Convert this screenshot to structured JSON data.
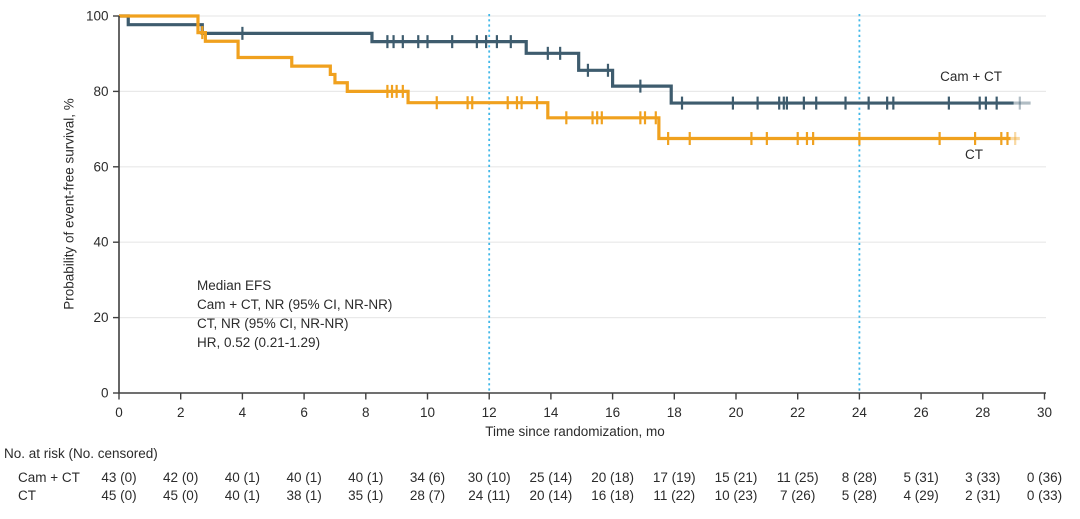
{
  "figure": {
    "legend": {
      "series1": "Cam + CT",
      "series2": "CT"
    },
    "annotation": {
      "line1": "Median EFS",
      "line2": "Cam + CT, NR (95% CI, NR-NR)",
      "line3": "CT, NR (95% CI, NR-NR)",
      "line4": "HR, 0.52 (0.21-1.29)"
    }
  },
  "chart_data": {
    "type": "line",
    "subtype": "kaplan-meier-step",
    "title": "",
    "xlabel": "Time since randomization, mo",
    "ylabel": "Probability of event-free survival, %",
    "xlim": [
      0,
      30
    ],
    "ylim": [
      0,
      100
    ],
    "xticks": [
      0,
      2,
      4,
      6,
      8,
      10,
      12,
      14,
      16,
      18,
      20,
      22,
      24,
      26,
      28,
      30
    ],
    "yticks": [
      0,
      20,
      40,
      60,
      80,
      100
    ],
    "grid": "horizontal-light",
    "reference_lines_x": [
      12,
      24
    ],
    "colors": {
      "series1": "#3e5c6e",
      "series2": "#f0a11e",
      "reference_line": "#42b8e8",
      "gridline": "#e9e9e9",
      "axis": "#404040",
      "text": "#2b2b2b"
    },
    "series": [
      {
        "name": "Cam + CT",
        "color": "#3e5c6e",
        "steps": [
          [
            0,
            100
          ],
          [
            0.3,
            97.7
          ],
          [
            2.7,
            95.4
          ],
          [
            8.2,
            93.2
          ],
          [
            13.2,
            90.1
          ],
          [
            14.9,
            85.6
          ],
          [
            16.0,
            81.4
          ],
          [
            17.9,
            76.9
          ],
          [
            29.0,
            76.9
          ]
        ],
        "censor_times": [
          4.0,
          8.7,
          8.9,
          9.2,
          9.7,
          10.0,
          10.8,
          11.6,
          11.9,
          12.25,
          12.7,
          13.9,
          14.3,
          15.2,
          15.85,
          16.9,
          18.25,
          19.9,
          20.7,
          21.4,
          21.55,
          21.65,
          22.2,
          22.6,
          23.55,
          24.3,
          24.9,
          25.1,
          26.9,
          27.9,
          28.1,
          28.45
        ],
        "light_censors": [],
        "fade_tail": [
          29.0,
          29.55
        ],
        "fade_censor": 29.2
      },
      {
        "name": "CT",
        "color": "#f0a11e",
        "steps": [
          [
            0,
            100
          ],
          [
            2.56,
            95.6
          ],
          [
            2.8,
            93.3
          ],
          [
            3.86,
            89.0
          ],
          [
            5.6,
            86.7
          ],
          [
            6.85,
            84.5
          ],
          [
            7.0,
            82.3
          ],
          [
            7.4,
            80.0
          ],
          [
            9.37,
            77.0
          ],
          [
            13.9,
            73.0
          ],
          [
            17.5,
            67.5
          ],
          [
            28.9,
            67.5
          ]
        ],
        "censor_times": [
          2.7,
          8.7,
          8.85,
          9.0,
          9.2,
          10.3,
          11.3,
          11.45,
          12.6,
          12.9,
          13.05,
          13.55,
          14.5,
          15.35,
          15.5,
          15.65,
          16.9,
          17.05,
          17.4,
          17.8,
          18.5,
          20.5,
          21.0,
          22.0,
          22.3,
          22.5,
          24.0,
          26.6,
          27.75,
          28.6,
          28.8
        ],
        "light_censors": [
          12.0
        ],
        "fade_tail": [
          28.9,
          29.2
        ],
        "fade_censor": 29.05
      }
    ],
    "risk_table": {
      "header": "No. at risk (No. censored)",
      "times": [
        0,
        2,
        4,
        6,
        8,
        10,
        12,
        14,
        16,
        18,
        20,
        22,
        24,
        26,
        28,
        30
      ],
      "rows": [
        {
          "name": "Cam + CT",
          "values": [
            "43 (0)",
            "42 (0)",
            "40 (1)",
            "40 (1)",
            "40 (1)",
            "34 (6)",
            "30 (10)",
            "25 (14)",
            "20 (18)",
            "17 (19)",
            "15 (21)",
            "11 (25)",
            "8 (28)",
            "5 (31)",
            "3 (33)",
            "0 (36)"
          ]
        },
        {
          "name": "CT",
          "values": [
            "45 (0)",
            "45 (0)",
            "40 (1)",
            "38 (1)",
            "35 (1)",
            "28 (7)",
            "24 (11)",
            "20 (14)",
            "16 (18)",
            "11 (22)",
            "10 (23)",
            "7 (26)",
            "5 (28)",
            "4 (29)",
            "2 (31)",
            "0 (33)"
          ]
        }
      ]
    }
  }
}
